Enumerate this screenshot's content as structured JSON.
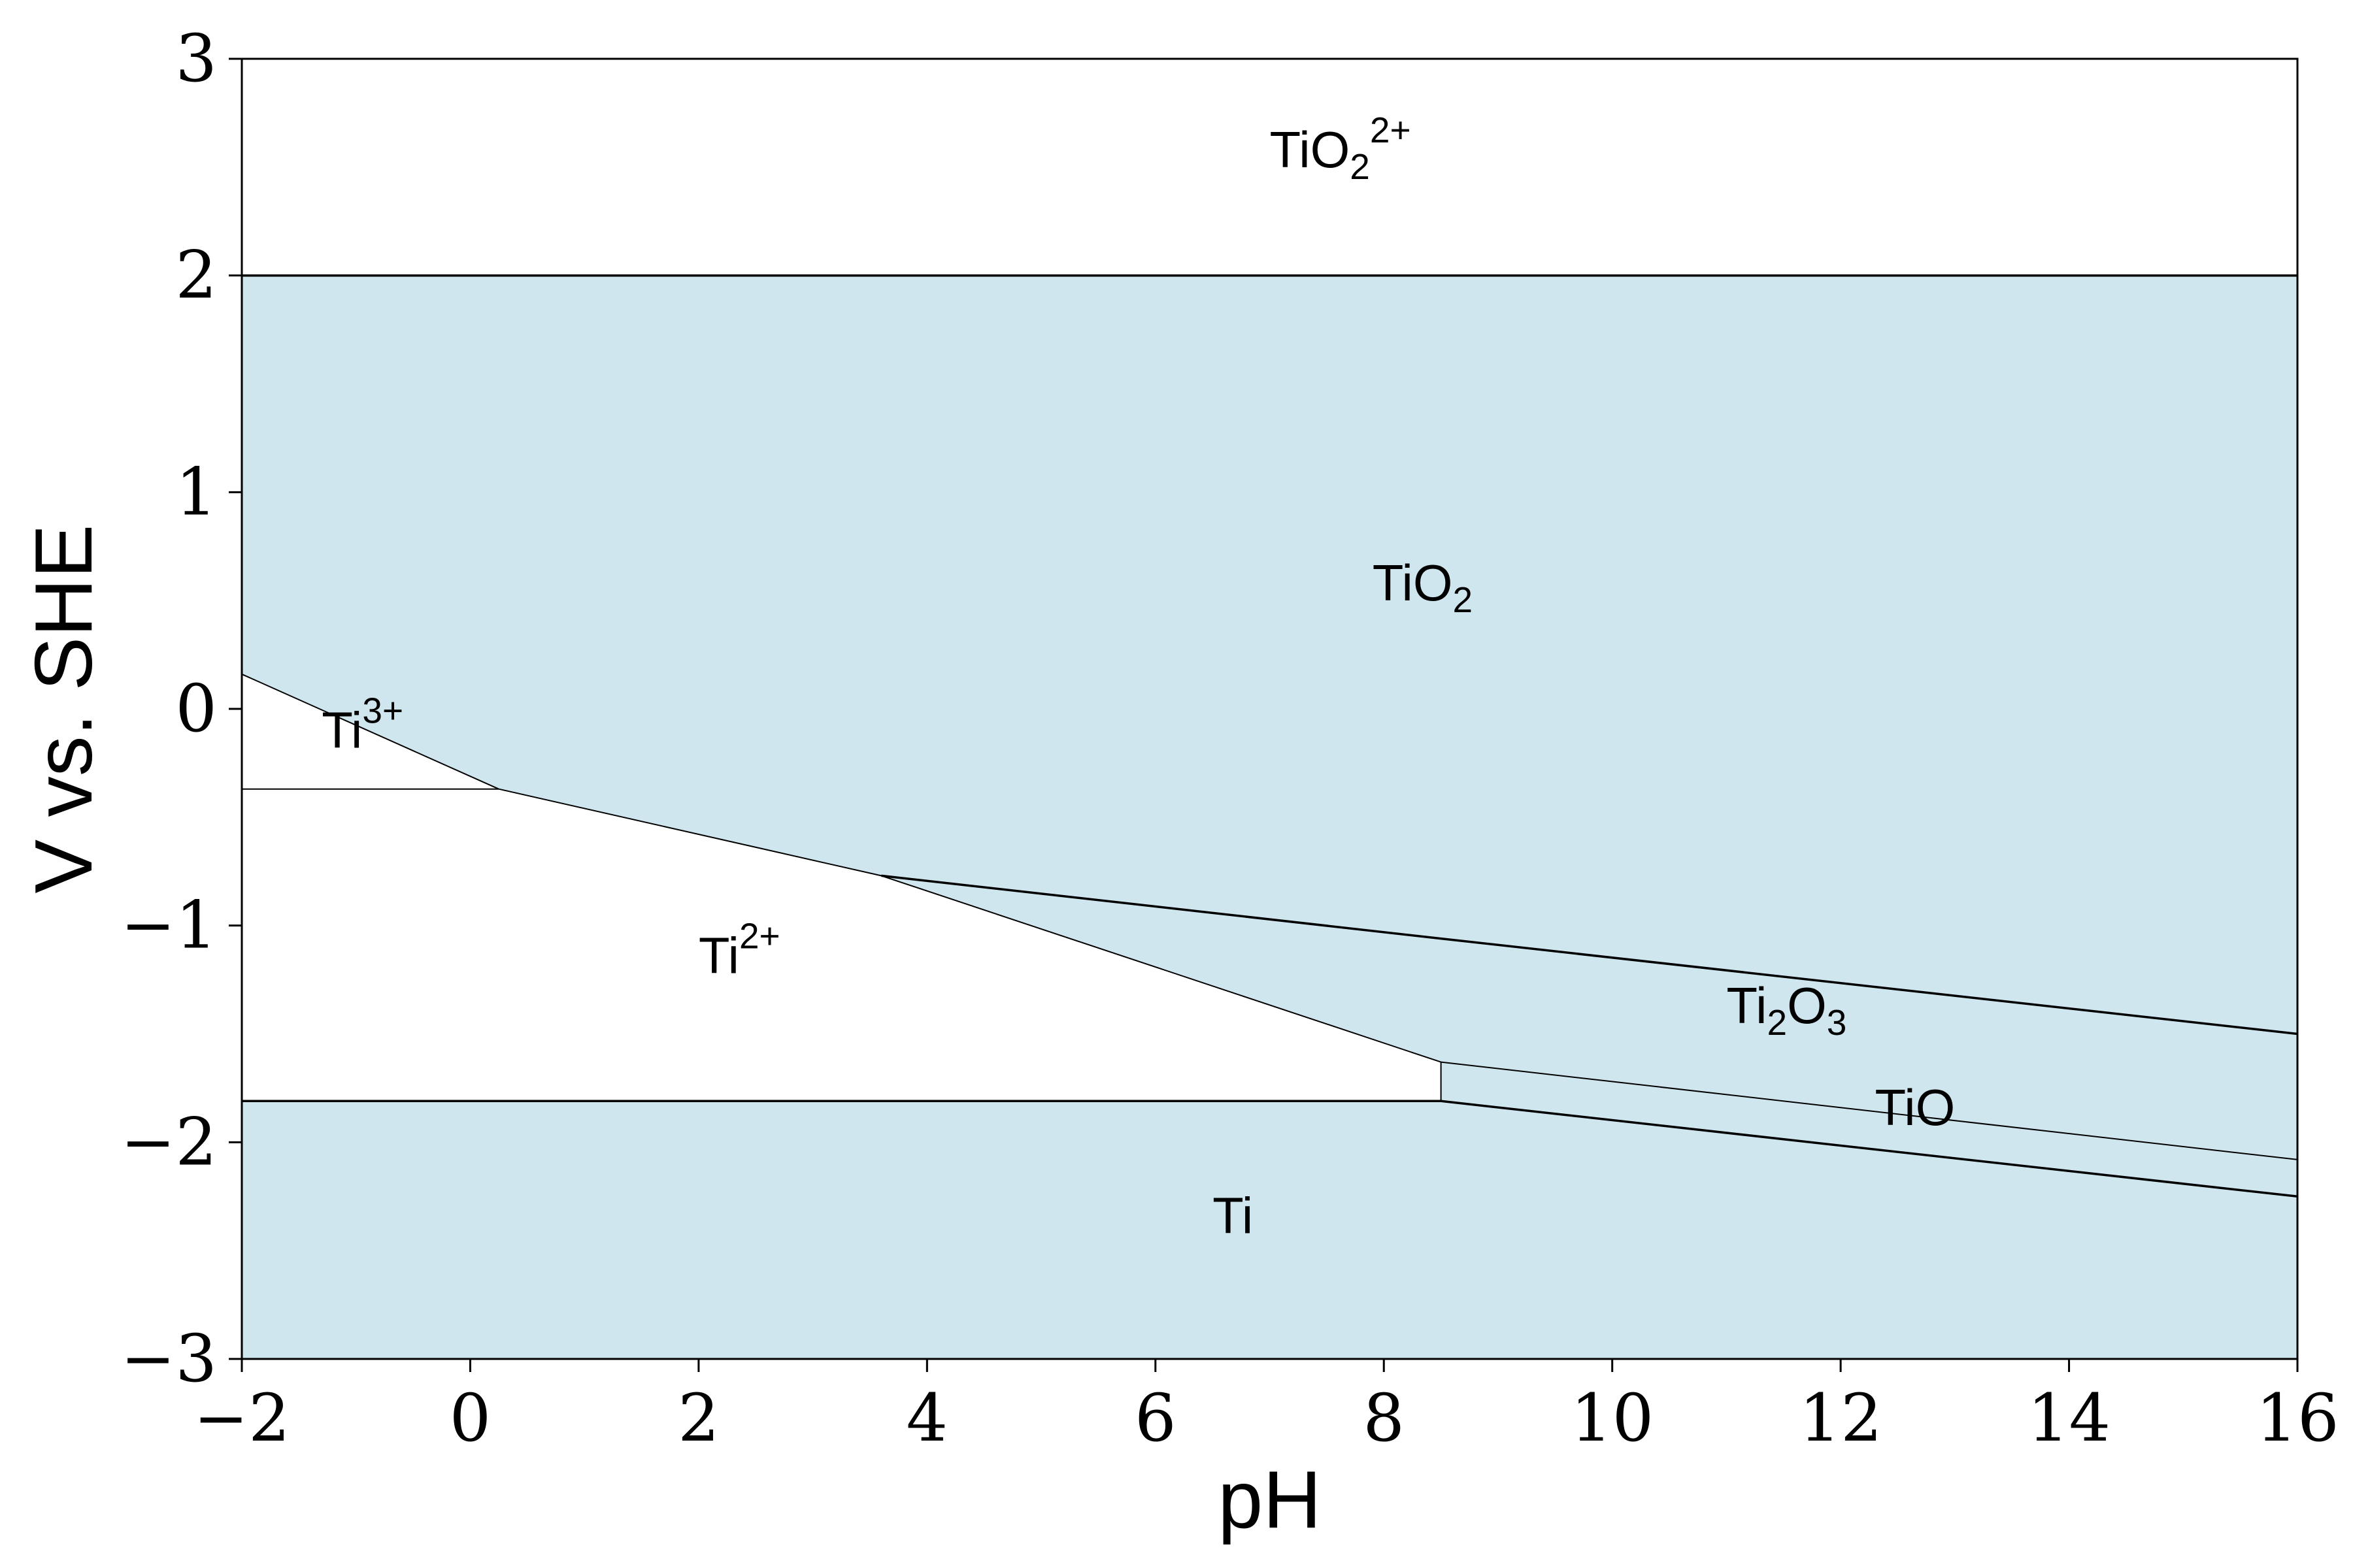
{
  "chart_data": {
    "type": "area",
    "title": "",
    "xlabel": "pH",
    "ylabel": "V vs. SHE",
    "xlim": [
      -2,
      16
    ],
    "ylim": [
      -3,
      3
    ],
    "xticks": [
      -2,
      0,
      2,
      4,
      6,
      8,
      10,
      12,
      14,
      16
    ],
    "yticks": [
      -3,
      -2,
      -1,
      0,
      1,
      2,
      3
    ],
    "grid": false,
    "colors": {
      "solid_region": "#cfe6ef",
      "aqueous_region": "#ffffff",
      "boundary": "#000000"
    },
    "regions": [
      {
        "name": "TiO2_2plus",
        "label": {
          "base": "TiO",
          "sub": "2",
          "sup": "2+"
        },
        "phase": "aqueous",
        "label_at": [
          7.0,
          2.5
        ],
        "polygon": [
          [
            -2,
            2
          ],
          [
            16,
            2
          ],
          [
            16,
            3
          ],
          [
            -2,
            3
          ]
        ]
      },
      {
        "name": "TiO2",
        "label": {
          "base": "TiO",
          "sub": "2",
          "sup": ""
        },
        "phase": "solid",
        "label_at": [
          7.9,
          0.5
        ],
        "polygon": [
          [
            -2,
            0.16
          ],
          [
            0.25,
            -0.37
          ],
          [
            3.6,
            -0.77
          ],
          [
            8.5,
            -1.06
          ],
          [
            16,
            -1.5
          ],
          [
            16,
            2
          ],
          [
            -2,
            2
          ]
        ]
      },
      {
        "name": "Ti3plus",
        "label": {
          "base": "Ti",
          "sub": "",
          "sup": "3+"
        },
        "phase": "aqueous",
        "label_at": [
          -1.3,
          -0.18
        ],
        "polygon": [
          [
            -2,
            0.16
          ],
          [
            0.25,
            -0.37
          ],
          [
            -2,
            -0.37
          ]
        ]
      },
      {
        "name": "Ti2plus",
        "label": {
          "base": "Ti",
          "sub": "",
          "sup": "2+"
        },
        "phase": "aqueous",
        "label_at": [
          2.0,
          -1.22
        ],
        "polygon": [
          [
            -2,
            -0.37
          ],
          [
            0.25,
            -0.37
          ],
          [
            3.6,
            -0.77
          ],
          [
            8.5,
            -1.63
          ],
          [
            8.5,
            -1.81
          ],
          [
            -2,
            -1.81
          ]
        ]
      },
      {
        "name": "Ti2O3",
        "label": {
          "base": "Ti",
          "sub": "2",
          "sup": "",
          "base2": "O",
          "sub2": "3"
        },
        "phase": "solid",
        "label_at": [
          11.0,
          -1.45
        ],
        "polygon": [
          [
            3.6,
            -0.77
          ],
          [
            8.5,
            -1.06
          ],
          [
            16,
            -1.5
          ],
          [
            16,
            -2.08
          ],
          [
            8.5,
            -1.63
          ]
        ]
      },
      {
        "name": "TiO",
        "label": {
          "base": "TiO",
          "sub": "",
          "sup": ""
        },
        "phase": "solid",
        "label_at": [
          12.3,
          -1.92
        ],
        "polygon": [
          [
            8.5,
            -1.63
          ],
          [
            16,
            -2.08
          ],
          [
            16,
            -2.25
          ],
          [
            8.5,
            -1.81
          ]
        ]
      },
      {
        "name": "Ti",
        "label": {
          "base": "Ti",
          "sub": "",
          "sup": ""
        },
        "phase": "solid",
        "label_at": [
          6.5,
          -2.42
        ],
        "polygon": [
          [
            -2,
            -1.81
          ],
          [
            8.5,
            -1.81
          ],
          [
            16,
            -2.25
          ],
          [
            16,
            -3
          ],
          [
            -2,
            -3
          ]
        ]
      }
    ],
    "boundaries": [
      {
        "name": "tio2-upper-boundary",
        "points": [
          [
            -2,
            2
          ],
          [
            16,
            2
          ]
        ],
        "weight": "thick"
      },
      {
        "name": "tio2-ti3plus-boundary",
        "points": [
          [
            -2,
            0.16
          ],
          [
            0.25,
            -0.37
          ]
        ],
        "weight": "thin"
      },
      {
        "name": "ti3plus-ti2plus-boundary",
        "points": [
          [
            -2,
            -0.37
          ],
          [
            0.25,
            -0.37
          ]
        ],
        "weight": "thin"
      },
      {
        "name": "tio2-ti2plus-boundary",
        "points": [
          [
            0.25,
            -0.37
          ],
          [
            3.6,
            -0.77
          ]
        ],
        "weight": "thin"
      },
      {
        "name": "tio2-ti2o3-boundary",
        "points": [
          [
            3.6,
            -0.77
          ],
          [
            8.5,
            -1.06
          ],
          [
            16,
            -1.5
          ]
        ],
        "weight": "thick"
      },
      {
        "name": "ti2plus-ti2o3-boundary",
        "points": [
          [
            3.6,
            -0.77
          ],
          [
            8.5,
            -1.63
          ]
        ],
        "weight": "thin"
      },
      {
        "name": "ti2plus-tio-boundary",
        "points": [
          [
            8.5,
            -1.63
          ],
          [
            8.5,
            -1.81
          ]
        ],
        "weight": "thin"
      },
      {
        "name": "ti2o3-tio-boundary",
        "points": [
          [
            8.5,
            -1.63
          ],
          [
            16,
            -2.08
          ]
        ],
        "weight": "thin"
      },
      {
        "name": "ti-upper-boundary",
        "points": [
          [
            -2,
            -1.81
          ],
          [
            8.5,
            -1.81
          ],
          [
            16,
            -2.25
          ]
        ],
        "weight": "thick"
      }
    ]
  }
}
